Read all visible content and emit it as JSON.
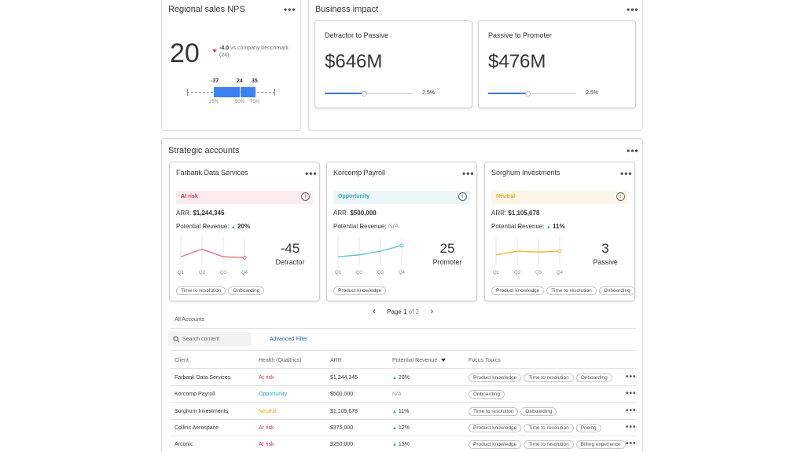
{
  "nps_panel": {
    "title": "Regional sales NPS",
    "score": "20",
    "delta": "-4.0",
    "delta_text": "vs company benchmark (24)",
    "box_labels": [
      "-37",
      "24",
      "35"
    ],
    "pct_labels": [
      "25%",
      "50%",
      "75%"
    ]
  },
  "impact_panel": {
    "title": "Business impact",
    "cards": [
      {
        "title": "Detractor to Passive",
        "value": "$646M",
        "pct": "2.5%",
        "slider_level": 0.45
      },
      {
        "title": "Passive to Promoter",
        "value": "$476M",
        "pct": "2.5%",
        "slider_level": 0.45
      }
    ]
  },
  "strategic": {
    "title": "Strategic accounts",
    "arr_label": "ARR:",
    "pot_label": "Potential Revenue:",
    "quarters": [
      "Q1",
      "Q2",
      "Q3",
      "Q4"
    ],
    "accounts": [
      {
        "name": "Farbank Data Services",
        "status": "At risk",
        "status_color": "#e0324b",
        "status_bg": "#fdecee",
        "arr": "$1,244,345",
        "potential": "20%",
        "score": "-45",
        "score_label": "Detractor",
        "line_color": "#e86e7d",
        "trend": [
          2,
          6,
          2,
          1.5
        ],
        "tags": [
          "Time to resolution",
          "Onboarding"
        ]
      },
      {
        "name": "Korcomp Payroll",
        "status": "Opportunity",
        "status_color": "#2ea5b8",
        "status_bg": "#eaf6f8",
        "arr": "$500,000",
        "potential": "N/A",
        "score": "25",
        "score_label": "Promoter",
        "line_color": "#5bbfcf",
        "trend": [
          2,
          3,
          5,
          8
        ],
        "tags": [
          "Product knowledge"
        ]
      },
      {
        "name": "Sorghum Investments",
        "status": "Neutral",
        "status_color": "#e6a519",
        "status_bg": "#fdf6e8",
        "arr": "$1,105,678",
        "potential": "11%",
        "score": "3",
        "score_label": "Passive",
        "line_color": "#f0b429",
        "trend": [
          3,
          5,
          4.5,
          5
        ],
        "tags": [
          "Product knowledge",
          "Time to resolution",
          "Onboarding"
        ]
      }
    ],
    "pagination": {
      "prev": "‹",
      "text_prefix": "Page",
      "current": "1",
      "of_text": "of 2",
      "next": "›"
    }
  },
  "table": {
    "title": "All Accounts",
    "search_placeholder": "Search content",
    "advanced_filter": "Advanced Filter",
    "headers": [
      "Client",
      "Health (Qualtrics)",
      "ARR",
      "Potential Revenue",
      "Focus Topics"
    ],
    "rows": [
      {
        "client": "Farbank Data Services",
        "health": "At risk",
        "health_color": "#e0324b",
        "arr": "$1,244,345",
        "potential": "20%",
        "topics": [
          "Product knowledge",
          "Time to resolution",
          "Onboarding"
        ]
      },
      {
        "client": "Korcomp Payroll",
        "health": "Opportunity",
        "health_color": "#2ea5b8",
        "arr": "$500,000",
        "potential": "N/A",
        "topics": [
          "Onboarding"
        ]
      },
      {
        "client": "Sorghum Investments",
        "health": "Neutral",
        "health_color": "#e6a519",
        "arr": "$1,105,678",
        "potential": "11%",
        "topics": [
          "Time to resolution",
          "Onboarding"
        ]
      },
      {
        "client": "Collins Aerospace",
        "health": "At risk",
        "health_color": "#e0324b",
        "arr": "$375,000",
        "potential": "12%",
        "topics": [
          "Product knowledge",
          "Time to resolution",
          "Pricing"
        ]
      },
      {
        "client": "Arconic",
        "health": "At risk",
        "health_color": "#e0324b",
        "arr": "$250,000",
        "potential": "15%",
        "topics": [
          "Product knowledge",
          "Time to resolution",
          "Billing experience"
        ]
      }
    ]
  },
  "colors": {
    "accent": "#3b73e0",
    "box": "#3b82f6"
  }
}
